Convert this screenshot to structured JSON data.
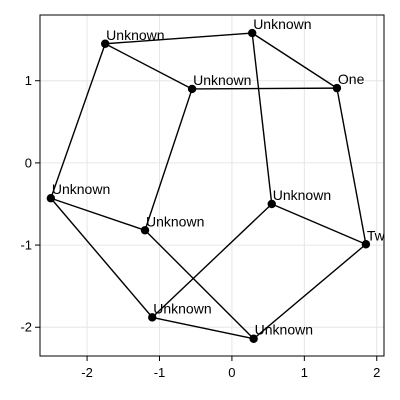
{
  "chart_data": {
    "type": "scatter",
    "xlim": [
      -2.65,
      2.1
    ],
    "ylim": [
      -2.35,
      1.8
    ],
    "xticks": [
      {
        "value": -2,
        "label": "-2"
      },
      {
        "value": -1,
        "label": "-1"
      },
      {
        "value": 0,
        "label": "0"
      },
      {
        "value": 1,
        "label": "1"
      },
      {
        "value": 2,
        "label": "2"
      }
    ],
    "yticks": [
      {
        "value": 1,
        "label": "1"
      },
      {
        "value": 0,
        "label": "0"
      },
      {
        "value": -1,
        "label": "-1"
      },
      {
        "value": -2,
        "label": "-2"
      }
    ],
    "grid": true,
    "nodes": [
      {
        "id": 0,
        "label": "One",
        "x": 1.45,
        "y": 0.91
      },
      {
        "id": 1,
        "label": "Two",
        "x": 1.85,
        "y": -0.99
      },
      {
        "id": 2,
        "label": "Unknown",
        "x": 0.3,
        "y": -2.14
      },
      {
        "id": 3,
        "label": "Unknown",
        "x": -1.1,
        "y": -1.88
      },
      {
        "id": 4,
        "label": "Unknown",
        "x": -2.5,
        "y": -0.43
      },
      {
        "id": 5,
        "label": "Unknown",
        "x": -1.75,
        "y": 1.45
      },
      {
        "id": 6,
        "label": "Unknown",
        "x": 0.28,
        "y": 1.58
      },
      {
        "id": 7,
        "label": "Unknown",
        "x": -0.55,
        "y": 0.9
      },
      {
        "id": 8,
        "label": "Unknown",
        "x": -1.2,
        "y": -0.82
      },
      {
        "id": 9,
        "label": "Unknown",
        "x": 0.55,
        "y": -0.5
      }
    ],
    "edges": [
      [
        0,
        1
      ],
      [
        1,
        2
      ],
      [
        2,
        3
      ],
      [
        3,
        4
      ],
      [
        4,
        5
      ],
      [
        5,
        6
      ],
      [
        6,
        0
      ],
      [
        0,
        7
      ],
      [
        7,
        8
      ],
      [
        8,
        4
      ],
      [
        8,
        2
      ],
      [
        6,
        9
      ],
      [
        9,
        1
      ],
      [
        9,
        3
      ],
      [
        5,
        7
      ]
    ]
  }
}
